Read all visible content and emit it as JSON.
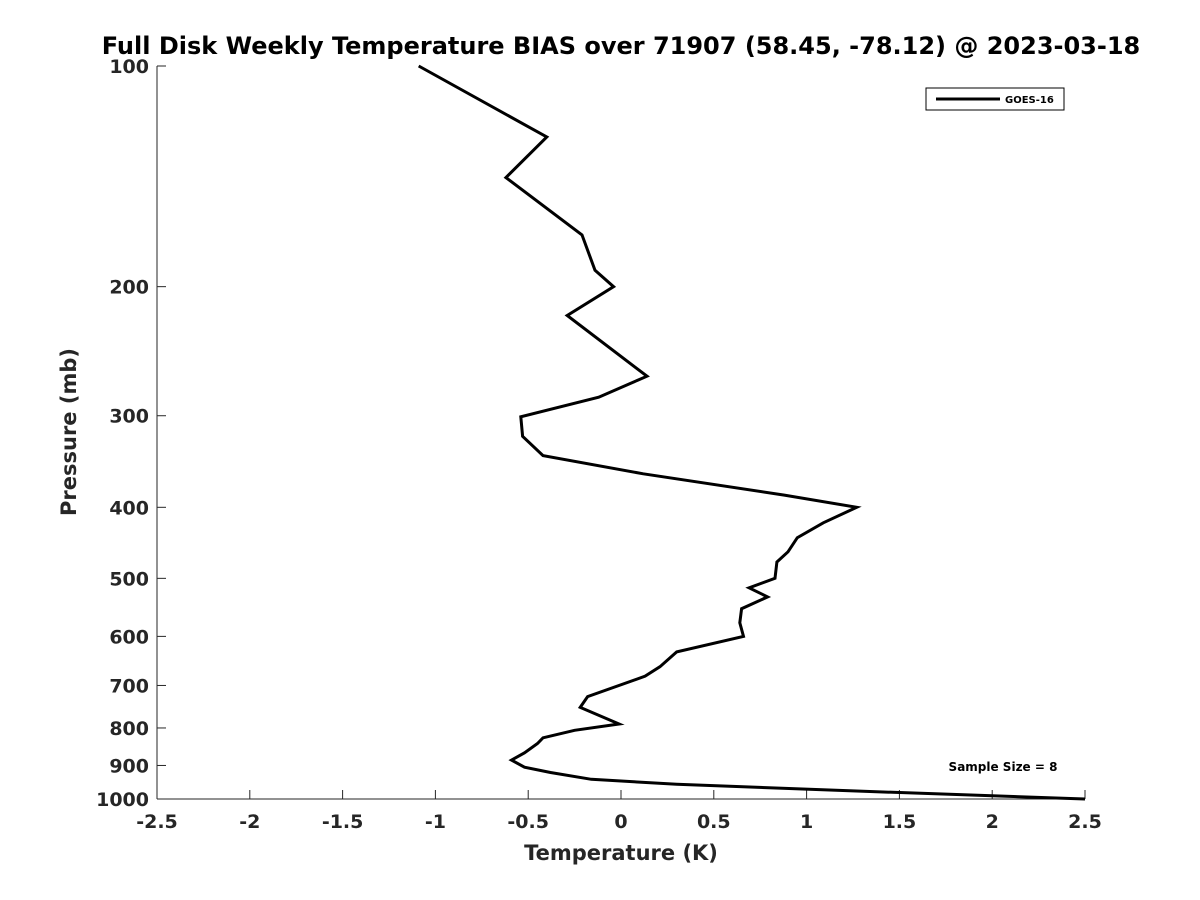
{
  "chart_data": {
    "type": "line",
    "title": "Full Disk Weekly Temperature BIAS over 71907 (58.45, -78.12) @ 2023-03-18",
    "xlabel": "Temperature (K)",
    "ylabel": "Pressure (mb)",
    "xlim": [
      -2.5,
      2.5
    ],
    "ylim": [
      100,
      1000
    ],
    "y_scale": "log",
    "y_reversed": true,
    "x_ticks": [
      "-2.5",
      "-2",
      "-1.5",
      "-1",
      "-0.5",
      "0",
      "0.5",
      "1",
      "1.5",
      "2",
      "2.5"
    ],
    "y_ticks": [
      "100",
      "200",
      "300",
      "400",
      "500",
      "600",
      "700",
      "800",
      "900",
      "1000"
    ],
    "grid": false,
    "legend_placement": "top-right",
    "line_color": "#000000",
    "series": [
      {
        "name": "GOES-16",
        "points": [
          {
            "x": -1.09,
            "p": 100
          },
          {
            "x": -0.4,
            "p": 125
          },
          {
            "x": -0.62,
            "p": 142
          },
          {
            "x": -0.21,
            "p": 170
          },
          {
            "x": -0.14,
            "p": 190
          },
          {
            "x": -0.04,
            "p": 200
          },
          {
            "x": -0.29,
            "p": 219
          },
          {
            "x": 0.14,
            "p": 265
          },
          {
            "x": -0.12,
            "p": 283
          },
          {
            "x": -0.54,
            "p": 301
          },
          {
            "x": -0.53,
            "p": 320
          },
          {
            "x": -0.42,
            "p": 340
          },
          {
            "x": 0.12,
            "p": 360
          },
          {
            "x": 0.88,
            "p": 385
          },
          {
            "x": 1.27,
            "p": 400
          },
          {
            "x": 1.09,
            "p": 420
          },
          {
            "x": 0.95,
            "p": 440
          },
          {
            "x": 0.9,
            "p": 460
          },
          {
            "x": 0.84,
            "p": 475
          },
          {
            "x": 0.83,
            "p": 500
          },
          {
            "x": 0.69,
            "p": 515
          },
          {
            "x": 0.79,
            "p": 530
          },
          {
            "x": 0.65,
            "p": 550
          },
          {
            "x": 0.64,
            "p": 575
          },
          {
            "x": 0.66,
            "p": 600
          },
          {
            "x": 0.3,
            "p": 630
          },
          {
            "x": 0.21,
            "p": 660
          },
          {
            "x": 0.13,
            "p": 680
          },
          {
            "x": -0.18,
            "p": 725
          },
          {
            "x": -0.22,
            "p": 750
          },
          {
            "x": -0.01,
            "p": 790
          },
          {
            "x": -0.25,
            "p": 806
          },
          {
            "x": -0.42,
            "p": 825
          },
          {
            "x": -0.45,
            "p": 840
          },
          {
            "x": -0.52,
            "p": 865
          },
          {
            "x": -0.59,
            "p": 885
          },
          {
            "x": -0.52,
            "p": 905
          },
          {
            "x": -0.38,
            "p": 920
          },
          {
            "x": -0.16,
            "p": 940
          },
          {
            "x": 0.3,
            "p": 955
          },
          {
            "x": 1.25,
            "p": 975
          },
          {
            "x": 2.5,
            "p": 1000
          }
        ]
      }
    ]
  },
  "legend": {
    "entry": "GOES-16"
  },
  "annotation": {
    "sample_size": "Sample Size = 8"
  }
}
